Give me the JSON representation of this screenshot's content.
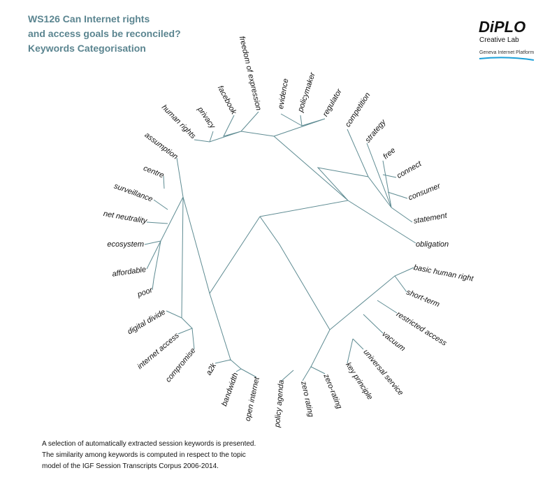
{
  "header": {
    "title_lines": [
      "WS126 Can Internet rights",
      "and access goals be reconciled?",
      "Keywords Categorisation"
    ]
  },
  "logo": {
    "name": "DiPLO",
    "subtitle": "Creative Lab",
    "platform": "Geneva Internet Platform"
  },
  "keywords": [
    "human rights",
    "privacy",
    "facebook",
    "freedom of expression",
    "evidence",
    "policymaker",
    "regulator",
    "competition",
    "strategy",
    "free",
    "connect",
    "consumer",
    "statement",
    "obligation",
    "basic human right",
    "short-term",
    "restricted access",
    "vacuum",
    "universal service",
    "key principle",
    "zero-rating",
    "zero rating",
    "policy agenda",
    "open internet",
    "bandwidth",
    "a2k",
    "compromise",
    "internet access",
    "digital divide",
    "poor",
    "affordable",
    "ecosystem",
    "net neutrality",
    "surveillance",
    "centre",
    "assumption"
  ],
  "footer": {
    "lines": [
      "A selection of automatically extracted session keywords is presented.",
      "The similarity among keywords is computed in respect to the topic",
      "model of the IGF Session Transcripts Corpus 2006-2014."
    ]
  }
}
